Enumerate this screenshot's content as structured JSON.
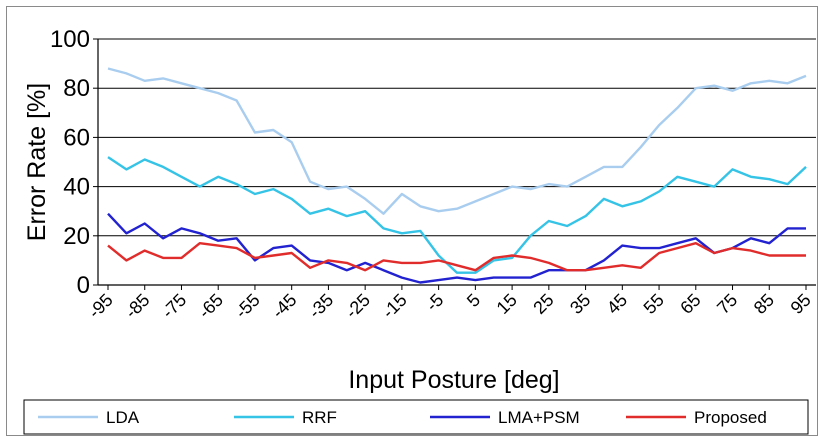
{
  "chart_data": {
    "type": "line",
    "title": "",
    "xlabel": "Input Posture [deg]",
    "ylabel": "Error Rate [%]",
    "ylim": [
      0,
      100
    ],
    "yticks": [
      "0",
      "20",
      "40",
      "60",
      "80",
      "100"
    ],
    "xticks": [
      "-95",
      "-85",
      "-75",
      "-65",
      "-55",
      "-45",
      "-35",
      "-25",
      "-15",
      "-5",
      "5",
      "15",
      "25",
      "35",
      "45",
      "55",
      "65",
      "75",
      "85",
      "95"
    ],
    "x": [
      -95,
      -90,
      -85,
      -80,
      -75,
      -70,
      -65,
      -60,
      -55,
      -50,
      -45,
      -40,
      -35,
      -30,
      -25,
      -20,
      -15,
      -10,
      -5,
      0,
      5,
      10,
      15,
      20,
      25,
      30,
      35,
      40,
      45,
      50,
      55,
      60,
      65,
      70,
      75,
      80,
      85,
      90,
      95
    ],
    "grid": "horizontal",
    "legend_position": "bottom",
    "series": [
      {
        "name": "LDA",
        "color": "#a9cdef",
        "values": [
          88,
          86,
          83,
          84,
          82,
          80,
          78,
          75,
          62,
          63,
          58,
          42,
          39,
          40,
          35,
          29,
          37,
          32,
          30,
          31,
          34,
          37,
          40,
          39,
          41,
          40,
          44,
          48,
          48,
          56,
          65,
          72,
          80,
          81,
          79,
          82,
          83,
          82,
          85
        ]
      },
      {
        "name": "RRF",
        "color": "#35c3e6",
        "values": [
          52,
          47,
          51,
          48,
          44,
          40,
          44,
          41,
          37,
          39,
          35,
          29,
          31,
          28,
          30,
          23,
          21,
          22,
          12,
          5,
          5,
          10,
          11,
          20,
          26,
          24,
          28,
          35,
          32,
          34,
          38,
          44,
          42,
          40,
          47,
          44,
          43,
          41,
          48
        ]
      },
      {
        "name": "LMA+PSM",
        "color": "#2222d0",
        "values": [
          29,
          21,
          25,
          19,
          23,
          21,
          18,
          19,
          10,
          15,
          16,
          10,
          9,
          6,
          9,
          6,
          3,
          1,
          2,
          3,
          2,
          3,
          3,
          3,
          6,
          6,
          6,
          10,
          16,
          15,
          15,
          17,
          19,
          13,
          15,
          19,
          17,
          23,
          23
        ]
      },
      {
        "name": "Proposed",
        "color": "#e12c2c",
        "values": [
          16,
          10,
          14,
          11,
          11,
          17,
          16,
          15,
          11,
          12,
          13,
          7,
          10,
          9,
          6,
          10,
          9,
          9,
          10,
          8,
          6,
          11,
          12,
          11,
          9,
          6,
          6,
          7,
          8,
          7,
          13,
          15,
          17,
          13,
          15,
          14,
          12,
          12,
          12
        ]
      }
    ]
  }
}
